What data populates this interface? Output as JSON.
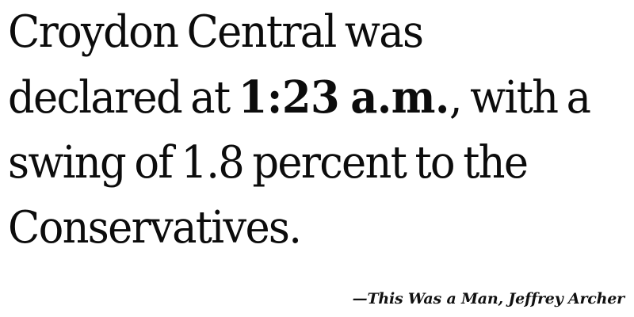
{
  "quote": {
    "text_before": "Croydon Central was declared at ",
    "highlight": "1:23 a.m.",
    "text_after": ", with a swing of 1.8 percent to the Conservatives."
  },
  "attribution": {
    "dash": "—",
    "work": "This Was a Man",
    "separator": ", ",
    "author": "Jeffrey Archer"
  }
}
